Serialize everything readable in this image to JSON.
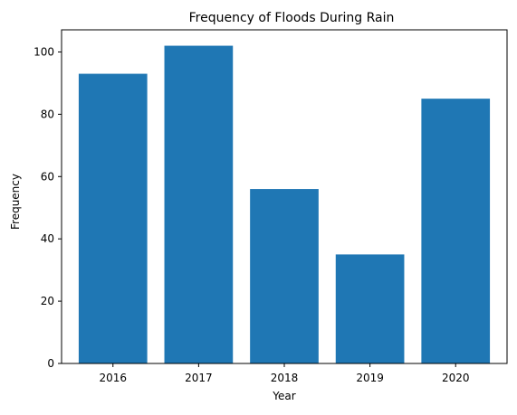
{
  "chart_data": {
    "type": "bar",
    "title": "Frequency of Floods During Rain",
    "xlabel": "Year",
    "ylabel": "Frequency",
    "categories": [
      "2016",
      "2017",
      "2018",
      "2019",
      "2020"
    ],
    "values": [
      93,
      102,
      56,
      35,
      85
    ],
    "ylim": [
      0,
      107.1
    ],
    "yticks": [
      0,
      20,
      40,
      60,
      80,
      100
    ],
    "grid": false,
    "colors": {
      "bar": "#1f77b4",
      "axes": "#000000",
      "background": "#ffffff"
    }
  }
}
